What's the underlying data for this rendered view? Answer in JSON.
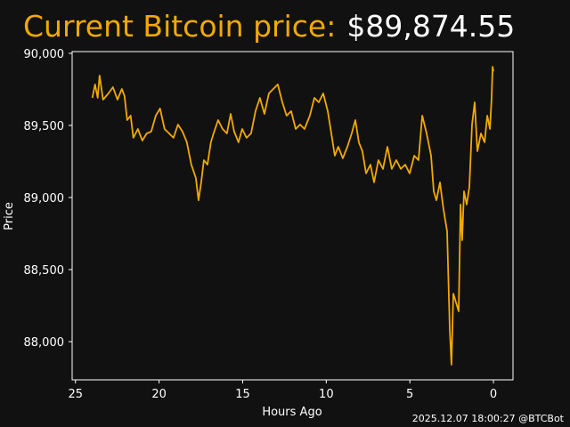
{
  "chart_data": {
    "type": "line",
    "title": "Current Bitcoin price:",
    "title_value": "$89,874.55",
    "xlabel": "Hours Ago",
    "ylabel": "Price",
    "footer": "2025.12.07 18:00:27 @BTCBot",
    "color": "#f2a900",
    "x": [
      23.99,
      23.83,
      23.67,
      23.56,
      23.35,
      23.03,
      22.76,
      22.49,
      22.23,
      22.07,
      21.91,
      21.7,
      21.54,
      21.27,
      21.0,
      20.74,
      20.47,
      20.2,
      19.94,
      19.67,
      19.4,
      19.14,
      18.87,
      18.6,
      18.34,
      18.07,
      17.8,
      17.64,
      17.48,
      17.32,
      17.11,
      16.9,
      16.74,
      16.47,
      16.2,
      15.94,
      15.72,
      15.51,
      15.25,
      15.03,
      14.77,
      14.5,
      14.23,
      13.97,
      13.7,
      13.43,
      13.17,
      12.9,
      12.63,
      12.37,
      12.1,
      11.83,
      11.57,
      11.3,
      10.98,
      10.71,
      10.45,
      10.18,
      9.91,
      9.7,
      9.49,
      9.28,
      9.01,
      8.74,
      8.48,
      8.26,
      8.05,
      7.84,
      7.62,
      7.36,
      7.14,
      6.88,
      6.61,
      6.34,
      6.08,
      5.81,
      5.54,
      5.28,
      5.01,
      4.74,
      4.48,
      4.26,
      4.0,
      3.73,
      3.57,
      3.41,
      3.2,
      2.99,
      2.77,
      2.61,
      2.51,
      2.4,
      2.24,
      2.08,
      1.97,
      1.87,
      1.76,
      1.6,
      1.44,
      1.28,
      1.12,
      0.96,
      0.75,
      0.53,
      0.37,
      0.21,
      0.11,
      0.05,
      0.0
    ],
    "values": [
      89691,
      89784,
      89691,
      89846,
      89679,
      89722,
      89765,
      89679,
      89753,
      89704,
      89537,
      89568,
      89414,
      89475,
      89395,
      89444,
      89457,
      89568,
      89617,
      89475,
      89444,
      89414,
      89506,
      89457,
      89383,
      89228,
      89136,
      88981,
      89105,
      89259,
      89228,
      89383,
      89444,
      89537,
      89475,
      89444,
      89580,
      89457,
      89383,
      89475,
      89414,
      89444,
      89599,
      89691,
      89580,
      89722,
      89753,
      89784,
      89660,
      89568,
      89599,
      89475,
      89506,
      89475,
      89568,
      89691,
      89660,
      89722,
      89599,
      89444,
      89290,
      89352,
      89272,
      89352,
      89444,
      89537,
      89383,
      89321,
      89167,
      89228,
      89105,
      89259,
      89198,
      89352,
      89198,
      89259,
      89198,
      89228,
      89167,
      89290,
      89259,
      89568,
      89444,
      89290,
      89043,
      88981,
      89105,
      88920,
      88765,
      88086,
      87840,
      88333,
      88272,
      88210,
      88951,
      88704,
      89043,
      88951,
      89074,
      89506,
      89660,
      89321,
      89444,
      89383,
      89568,
      89475,
      89691,
      89907,
      89874.55
    ],
    "xlim": [
      25.2,
      -1.17
    ],
    "ylim": [
      87735,
      90012
    ],
    "xticks": [
      25,
      20,
      15,
      10,
      5,
      0
    ],
    "yticks": [
      {
        "value": 88000,
        "label": "88,000"
      },
      {
        "value": 88500,
        "label": "88,500"
      },
      {
        "value": 89000,
        "label": "89,000"
      },
      {
        "value": 89500,
        "label": "89,500"
      },
      {
        "value": 90000,
        "label": "90,000"
      }
    ],
    "grid": false
  }
}
